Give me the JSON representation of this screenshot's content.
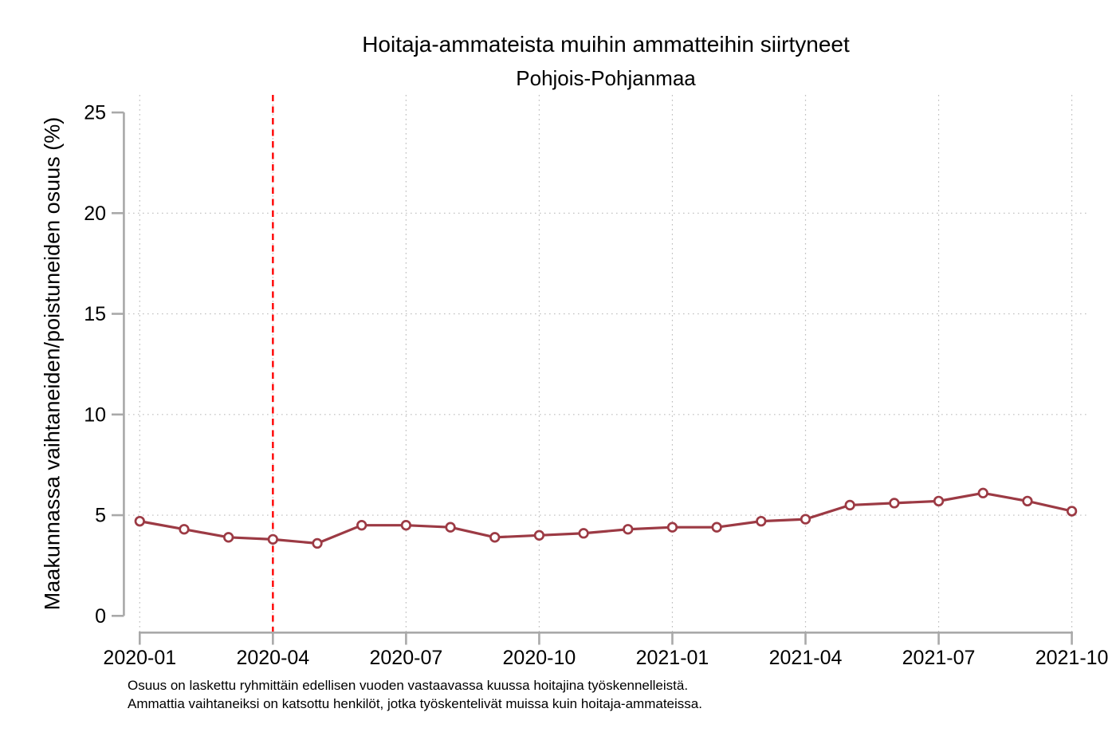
{
  "chart": {
    "title": "Hoitaja-ammateista muihin ammatteihin siirtyneet",
    "subtitle": "Pohjois-Pohjanmaa",
    "ylabel": "Maakunnassa vaihtaneiden/poistuneiden osuus (%)",
    "footnotes": [
      "Osuus on laskettu ryhmittäin edellisen vuoden vastaavassa kuussa hoitajina työskennelleistä.",
      "Ammattia vaihtaneiksi on katsottu henkilöt, jotka työskentelivät muissa kuin hoitaja-ammateissa."
    ]
  },
  "chart_data": {
    "type": "line",
    "title": "Hoitaja-ammateista muihin ammatteihin siirtyneet",
    "subtitle": "Pohjois-Pohjanmaa",
    "xlabel": "",
    "ylabel": "Maakunnassa vaihtaneiden/poistuneiden osuus (%)",
    "ylim": [
      0,
      25
    ],
    "y_ticks": [
      0,
      5,
      10,
      15,
      20,
      25
    ],
    "x": [
      "2020-01",
      "2020-02",
      "2020-03",
      "2020-04",
      "2020-05",
      "2020-06",
      "2020-07",
      "2020-08",
      "2020-09",
      "2020-10",
      "2020-11",
      "2020-12",
      "2021-01",
      "2021-02",
      "2021-03",
      "2021-04",
      "2021-05",
      "2021-06",
      "2021-07",
      "2021-08",
      "2021-09",
      "2021-10"
    ],
    "x_tick_labels": [
      "2020-01",
      "2020-04",
      "2020-07",
      "2020-10",
      "2021-01",
      "2021-04",
      "2021-07",
      "2021-10"
    ],
    "series": [
      {
        "name": "Pohjois-Pohjanmaa",
        "marker": "hollow-circle",
        "values": [
          4.7,
          4.3,
          3.9,
          3.8,
          3.6,
          4.5,
          4.5,
          4.4,
          3.9,
          4.0,
          4.1,
          4.3,
          4.4,
          4.4,
          4.7,
          4.8,
          5.5,
          5.6,
          5.7,
          6.1,
          5.7,
          5.2
        ]
      }
    ],
    "reference_line": {
      "axis": "x",
      "at": "2020-04",
      "style": "dashed"
    },
    "grid": "dotted",
    "legend": "none",
    "colors": {
      "series": "#9c3a44",
      "marker_fill": "#ffffff",
      "reference_line": "#ff0000",
      "axis": "#a9a9a9",
      "grid": "#bdbdbd",
      "text": "#000000"
    }
  }
}
